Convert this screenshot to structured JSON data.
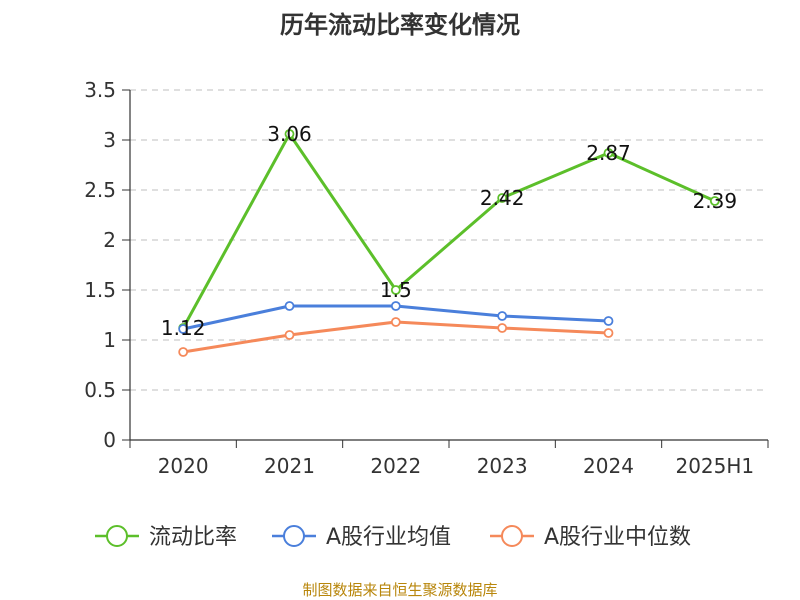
{
  "chart_data": {
    "type": "line",
    "title": "历年流动比率变化情况",
    "categories": [
      "2020",
      "2021",
      "2022",
      "2023",
      "2024",
      "2025H1"
    ],
    "ylim": [
      0,
      3.5
    ],
    "yticks": [
      "0",
      "0.5",
      "1",
      "1.5",
      "2",
      "2.5",
      "3",
      "3.5"
    ],
    "grid": "horizontal-dashed",
    "legend_position": "bottom",
    "series": [
      {
        "name": "流动比率",
        "color": "#5cbf2a",
        "values": [
          1.12,
          3.06,
          1.5,
          2.42,
          2.87,
          2.39
        ],
        "labels": [
          "1.12",
          "3.06",
          "1.5",
          "2.42",
          "2.87",
          "2.39"
        ]
      },
      {
        "name": "A股行业均值",
        "color": "#4a7fdb",
        "values": [
          1.11,
          1.34,
          1.34,
          1.24,
          1.19,
          null
        ]
      },
      {
        "name": "A股行业中位数",
        "color": "#f5895a",
        "values": [
          0.88,
          1.05,
          1.18,
          1.12,
          1.07,
          null
        ]
      }
    ],
    "source": "制图数据来自恒生聚源数据库"
  }
}
